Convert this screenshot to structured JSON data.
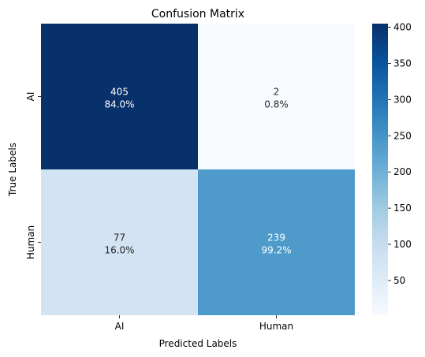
{
  "chart_data": {
    "type": "heatmap",
    "title": "Confusion Matrix",
    "xlabel": "Predicted Labels",
    "ylabel": "True Labels",
    "x_categories": [
      "AI",
      "Human"
    ],
    "y_categories": [
      "AI",
      "Human"
    ],
    "values": [
      [
        405,
        2
      ],
      [
        77,
        239
      ]
    ],
    "cell_labels": [
      [
        "84.0%",
        "0.8%"
      ],
      [
        "16.0%",
        "99.2%"
      ]
    ],
    "colormap": "Blues",
    "colorbar": {
      "range": [
        2,
        405
      ],
      "ticks": [
        50,
        100,
        150,
        200,
        250,
        300,
        350,
        400
      ]
    }
  }
}
